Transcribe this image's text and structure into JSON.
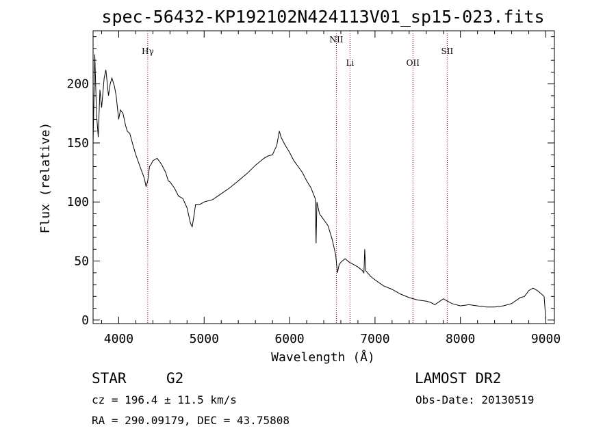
{
  "chart_data": {
    "type": "line",
    "title": "spec-56432-KP192102N424113V01_sp15-023.fits",
    "xlabel": "Wavelength (Å)",
    "ylabel": "Flux (relative)",
    "xlim": [
      3700,
      9100
    ],
    "ylim": [
      -3,
      245
    ],
    "x_ticks": [
      4000,
      5000,
      6000,
      7000,
      8000,
      9000
    ],
    "y_ticks": [
      0,
      50,
      100,
      150,
      200
    ],
    "grid": false,
    "line_color": "#000000",
    "marker_color": "#8b0000",
    "spectral_lines": [
      {
        "label": "Hγ",
        "x": 4340
      },
      {
        "label": "NII",
        "x": 6548
      },
      {
        "label": "Li",
        "x": 6708
      },
      {
        "label": "OII",
        "x": 7444
      },
      {
        "label": "SII",
        "x": 7845
      }
    ],
    "series": [
      {
        "x": [
          3700,
          3720,
          3740,
          3760,
          3780,
          3800,
          3830,
          3850,
          3880,
          3900,
          3920,
          3950,
          3970,
          4000,
          4020,
          4050,
          4080,
          4100,
          4130,
          4160,
          4200,
          4250,
          4300,
          4320,
          4340,
          4360,
          4380,
          4400,
          4450,
          4500,
          4550,
          4580,
          4600,
          4650,
          4700,
          4750,
          4800,
          4840,
          4860,
          4880,
          4900,
          4950,
          5000,
          5050,
          5100,
          5200,
          5300,
          5400,
          5500,
          5600,
          5700,
          5750,
          5800,
          5850,
          5880,
          5900,
          5920,
          5950,
          6000,
          6050,
          6100,
          6150,
          6200,
          6250,
          6300,
          6310,
          6320,
          6350,
          6400,
          6450,
          6500,
          6540,
          6560,
          6580,
          6600,
          6650,
          6700,
          6750,
          6800,
          6850,
          6870,
          6880,
          6890,
          6900,
          6950,
          7000,
          7100,
          7200,
          7300,
          7400,
          7500,
          7600,
          7650,
          7700,
          7800,
          7900,
          8000,
          8100,
          8200,
          8300,
          8400,
          8500,
          8600,
          8700,
          8750,
          8800,
          8850,
          8900,
          8950,
          8980,
          9000
        ],
        "values": [
          150,
          225,
          175,
          155,
          195,
          180,
          205,
          212,
          190,
          200,
          205,
          198,
          190,
          170,
          178,
          175,
          165,
          160,
          158,
          150,
          140,
          130,
          120,
          113,
          118,
          130,
          132,
          135,
          137,
          132,
          125,
          118,
          117,
          112,
          105,
          103,
          95,
          82,
          79,
          88,
          98,
          98,
          100,
          101,
          102,
          107,
          112,
          118,
          124,
          131,
          137,
          139,
          140,
          148,
          160,
          155,
          152,
          148,
          142,
          135,
          130,
          125,
          118,
          112,
          103,
          65,
          100,
          90,
          85,
          80,
          68,
          55,
          40,
          47,
          49,
          52,
          49,
          47,
          45,
          42,
          40,
          60,
          42,
          41,
          37,
          34,
          29,
          26,
          22,
          19,
          17,
          16,
          15,
          13,
          18,
          14,
          12,
          13,
          12,
          11,
          11,
          12,
          14,
          19,
          20,
          25,
          27,
          25,
          22,
          20,
          0
        ]
      }
    ]
  },
  "info": {
    "object_type": "STAR",
    "subclass": "G2",
    "survey": "LAMOST DR2",
    "redshift": "cz = 196.4 ± 11.5 km/s",
    "obs_date": "Obs-Date: 20130519",
    "coords": "RA = 290.09179, DEC =  43.75808"
  }
}
